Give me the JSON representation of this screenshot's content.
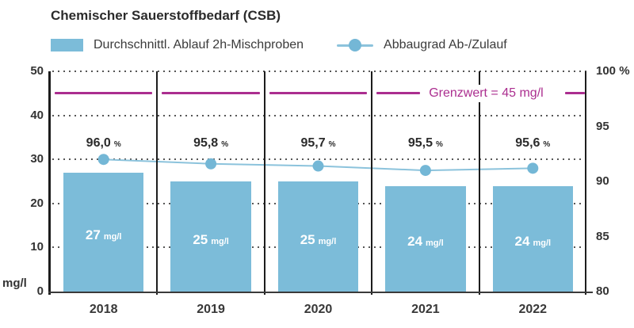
{
  "title": "Chemischer Sauerstoffbedarf (CSB)",
  "legend": {
    "bar_label": "Durchschnittl. Ablauf 2h-Mischproben",
    "line_label": "Abbaugrad Ab-/Zulauf"
  },
  "chart_data": {
    "type": "bar",
    "subtype": "bar+line combo, dual y-axis",
    "title": "Chemischer Sauerstoffbedarf (CSB)",
    "categories": [
      "2018",
      "2019",
      "2020",
      "2021",
      "2022"
    ],
    "series": [
      {
        "name": "Durchschnittl. Ablauf 2h-Mischproben",
        "type": "bar",
        "unit": "mg/l",
        "values": [
          27,
          25,
          25,
          24,
          24
        ],
        "bar_labels": [
          "27",
          "25",
          "25",
          "24",
          "24"
        ]
      },
      {
        "name": "Abbaugrad Ab-/Zulauf",
        "type": "line",
        "unit": "%",
        "values": [
          96.0,
          95.8,
          95.7,
          95.5,
          95.6
        ],
        "point_labels": [
          "96,0",
          "95,8",
          "95,7",
          "95,5",
          "95,6"
        ]
      }
    ],
    "y_left": {
      "unit_label": "mg/l",
      "ticks": [
        0,
        10,
        20,
        30,
        40,
        50
      ],
      "lim": [
        0,
        50
      ]
    },
    "y_right": {
      "ticks": [
        {
          "value": 100,
          "label": "100 %"
        },
        {
          "value": 95,
          "label": "95"
        },
        {
          "value": 90,
          "label": "90"
        },
        {
          "value": 85,
          "label": "85"
        },
        {
          "value": 80,
          "label": "80"
        }
      ],
      "lim": [
        80,
        100
      ]
    },
    "threshold": {
      "value": 45,
      "label": "Grenzwert = 45 mg/l"
    },
    "line_visual_lim": [
      90,
      100
    ],
    "grid": "dotted horizontal gridlines every 10 mg/l, vertical panel dividers per year",
    "legend_position": "top"
  },
  "colors": {
    "bar": "#7cbcd9",
    "line": "#8cc3dc",
    "marker": "#74b7d6",
    "threshold": "#ab2e8f",
    "axis": "#1d1d1d",
    "text": "#2e2e2e"
  }
}
